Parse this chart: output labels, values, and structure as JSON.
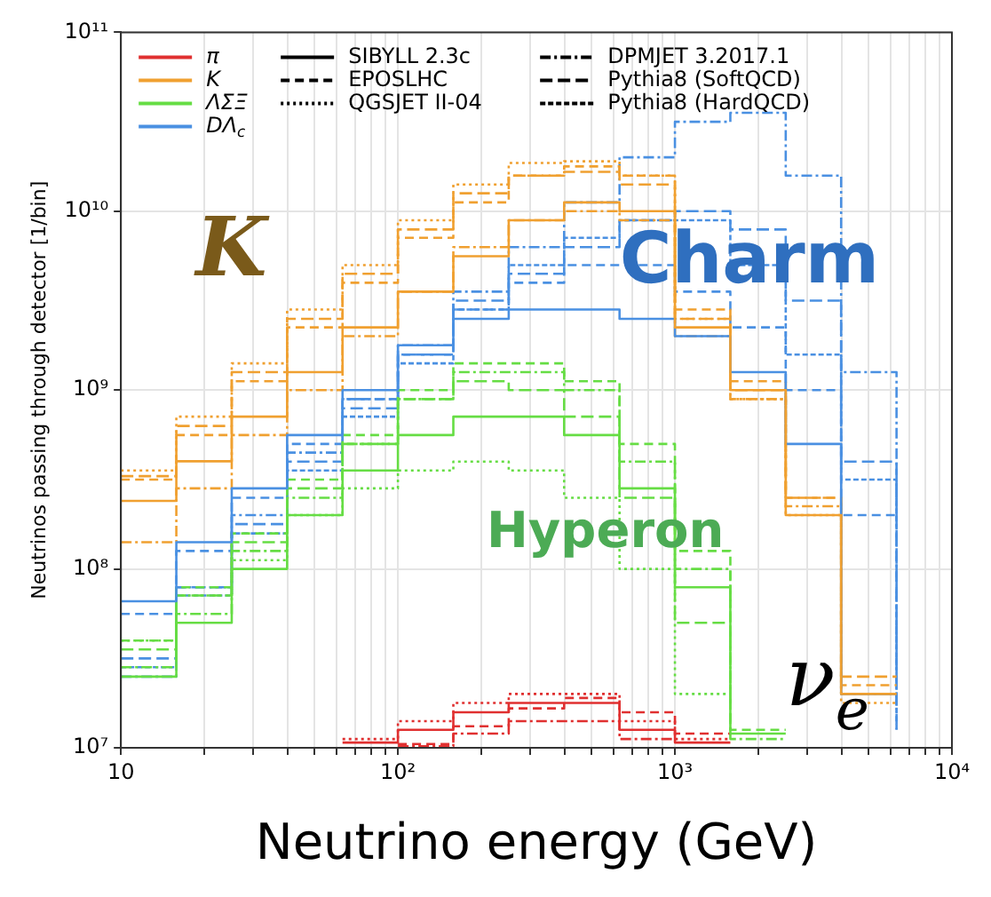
{
  "chart_data": {
    "type": "step",
    "xlabel": "Neutrino energy (GeV)",
    "ylabel": "Neutrinos passing through detector [1/bin]",
    "log": "xy",
    "grid": true,
    "legend": "top left",
    "xlim": [
      10,
      10000
    ],
    "ylim": [
      10000000,
      100000000000
    ],
    "xticks": [
      {
        "value": 10,
        "label": "10"
      },
      {
        "value": 20,
        "label": null
      },
      {
        "value": 30,
        "label": null
      },
      {
        "value": 40,
        "label": null
      },
      {
        "value": 50,
        "label": null
      },
      {
        "value": 60,
        "label": null
      },
      {
        "value": 70,
        "label": null
      },
      {
        "value": 80,
        "label": null
      },
      {
        "value": 90,
        "label": null
      },
      {
        "value": 100,
        "label": "10²"
      },
      {
        "value": 200,
        "label": null
      },
      {
        "value": 300,
        "label": null
      },
      {
        "value": 400,
        "label": null
      },
      {
        "value": 500,
        "label": null
      },
      {
        "value": 600,
        "label": null
      },
      {
        "value": 700,
        "label": null
      },
      {
        "value": 800,
        "label": null
      },
      {
        "value": 900,
        "label": null
      },
      {
        "value": 1000,
        "label": "10³"
      },
      {
        "value": 2000,
        "label": null
      },
      {
        "value": 3000,
        "label": null
      },
      {
        "value": 4000,
        "label": null
      },
      {
        "value": 5000,
        "label": null
      },
      {
        "value": 6000,
        "label": null
      },
      {
        "value": 7000,
        "label": null
      },
      {
        "value": 8000,
        "label": null
      },
      {
        "value": 9000,
        "label": null
      },
      {
        "value": 10000,
        "label": "10⁴"
      }
    ],
    "yticks": [
      {
        "value": 10000000,
        "label": "10⁷"
      },
      {
        "value": 100000000,
        "label": "10⁸"
      },
      {
        "value": 1000000000,
        "label": "10⁹"
      },
      {
        "value": 10000000000,
        "label": "10¹⁰"
      },
      {
        "value": 100000000000,
        "label": "10¹¹"
      }
    ],
    "x": [
      10,
      15.85,
      25.12,
      39.81,
      63.1,
      100,
      158.5,
      251.2,
      398.1,
      631,
      1000,
      1585,
      2512,
      3981,
      6310
    ],
    "annotations": [
      "K",
      "Charm",
      "Hyperon",
      "ν$_{e}$"
    ],
    "series": [
      {
        "name": "π",
        "color": "#e03030",
        "line_style": "solid",
        "values": [
          null,
          null,
          null,
          null,
          10700000.0,
          12600000.0,
          15800000.0,
          17800000.0,
          17800000.0,
          12600000.0,
          10700000.0,
          10700000.0,
          null,
          null,
          null
        ]
      },
      {
        "name": "K",
        "color": "#f0a030",
        "line_style": "solid",
        "values": [
          240000000.0,
          400000000.0,
          710000000.0,
          1260000000.0,
          2240000000.0,
          3550000000.0,
          5600000000.0,
          8900000000.0,
          11200000000.0,
          10000000000.0,
          2240000000.0,
          1000000000.0,
          200000000.0,
          20000000.0,
          20000000.0
        ]
      },
      {
        "name": "ΛΣΞ",
        "color": "#66dd44",
        "line_style": "solid",
        "values": [
          25000000.0,
          50000000.0,
          100000000.0,
          200000000.0,
          355000000.0,
          560000000.0,
          710000000.0,
          710000000.0,
          560000000.0,
          282000000.0,
          79000000.0,
          12000000.0,
          12000000.0,
          null,
          null
        ]
      },
      {
        "name": "DΛ$_{c}$",
        "color": "#4a90e2",
        "line_style": "solid",
        "values": [
          66000000.0,
          141000000.0,
          282000000.0,
          560000000.0,
          1000000000.0,
          1780000000.0,
          2500000000.0,
          2820000000.0,
          2820000000.0,
          2500000000.0,
          2000000000.0,
          1260000000.0,
          500000000.0,
          20000000.0,
          20000000.0
        ]
      },
      {
        "name": "SIBYLL 2.3c",
        "color": "#000000",
        "line_style": "solid",
        "values": [
          null,
          null,
          null,
          null,
          null,
          null,
          null,
          null,
          null,
          null,
          null,
          null,
          null,
          null,
          null
        ]
      },
      {
        "name": "EPOSLHC",
        "color": "#000000",
        "line_style": "dashed",
        "values": [
          null,
          null,
          null,
          null,
          null,
          null,
          null,
          null,
          null,
          null,
          null,
          null,
          null,
          null,
          null
        ]
      },
      {
        "name": "QGSJET II-04",
        "color": "#000000",
        "line_style": "dotted",
        "values": [
          null,
          null,
          null,
          null,
          null,
          null,
          null,
          null,
          null,
          null,
          null,
          null,
          null,
          null,
          null
        ]
      },
      {
        "name": "DPMJET 3.2017.1",
        "color": "#000000",
        "line_style": "dashdot",
        "values": [
          null,
          null,
          null,
          null,
          null,
          null,
          null,
          null,
          null,
          null,
          null,
          null,
          null,
          null,
          null
        ]
      },
      {
        "name": "Pythia8 (SoftQCD)",
        "color": "#000000",
        "line_style": "longdash",
        "values": [
          null,
          null,
          null,
          null,
          null,
          null,
          null,
          null,
          null,
          null,
          null,
          null,
          null,
          null,
          null
        ]
      },
      {
        "name": "Pythia8 (HardQCD)",
        "color": "#000000",
        "line_style": "densedash",
        "values": [
          null,
          null,
          null,
          null,
          null,
          null,
          null,
          null,
          null,
          null,
          null,
          null,
          null,
          null,
          null
        ]
      },
      {
        "color": "#e03030",
        "line_style": "dashed",
        "values": [
          null,
          null,
          null,
          null,
          null,
          10500000.0,
          13200000.0,
          16600000.0,
          19000000.0,
          15800000.0,
          12000000.0,
          12000000.0,
          null,
          null,
          null
        ]
      },
      {
        "color": "#e03030",
        "line_style": "dotted",
        "values": [
          null,
          null,
          null,
          null,
          11200000.0,
          14100000.0,
          17800000.0,
          20000000.0,
          20000000.0,
          14100000.0,
          11200000.0,
          11200000.0,
          null,
          null,
          null
        ]
      },
      {
        "color": "#e03030",
        "line_style": "dashdot",
        "values": [
          null,
          null,
          null,
          null,
          null,
          10200000.0,
          12000000.0,
          14100000.0,
          14100000.0,
          11200000.0,
          11200000.0,
          null,
          null,
          null,
          null
        ]
      },
      {
        "color": "#f0a030",
        "line_style": "dashed",
        "values": [
          316000000.0,
          560000000.0,
          1120000000.0,
          2240000000.0,
          3980000000.0,
          7100000000.0,
          11200000000.0,
          15800000000.0,
          17800000000.0,
          15800000000.0,
          2820000000.0,
          1120000000.0,
          250000000.0,
          22400000.0,
          22400000.0
        ]
      },
      {
        "color": "#f0a030",
        "line_style": "dotted",
        "values": [
          355000000.0,
          710000000.0,
          1410000000.0,
          2820000000.0,
          5000000000.0,
          8900000000.0,
          14100000000.0,
          18600000000.0,
          19000000000.0,
          15800000000.0,
          2500000000.0,
          890000000.0,
          200000000.0,
          17800000.0,
          17800000.0
        ]
      },
      {
        "color": "#f0a030",
        "line_style": "dashdot",
        "values": [
          141000000.0,
          282000000.0,
          560000000.0,
          1000000000.0,
          2000000000.0,
          3550000000.0,
          6300000000.0,
          8900000000.0,
          10000000000.0,
          8900000000.0,
          2000000000.0,
          890000000.0,
          224000000.0,
          20000000.0,
          20000000.0
        ]
      },
      {
        "color": "#f0a030",
        "line_style": "longdash",
        "values": [
          330000000.0,
          630000000.0,
          1260000000.0,
          2500000000.0,
          4470000000.0,
          7900000000.0,
          12600000000.0,
          15800000000.0,
          16600000000.0,
          14100000000.0,
          2500000000.0,
          1000000000.0,
          250000000.0,
          25000000.0,
          25000000.0
        ]
      },
      {
        "color": "#66dd44",
        "line_style": "dashed",
        "values": [
          39800000.0,
          79000000.0,
          158000000.0,
          316000000.0,
          560000000.0,
          1000000000.0,
          1410000000.0,
          1410000000.0,
          1120000000.0,
          500000000.0,
          126000000.0,
          12600000.0,
          12600000.0,
          null,
          null
        ]
      },
      {
        "color": "#66dd44",
        "line_style": "dotted",
        "values": [
          39800000.0,
          71000000.0,
          112000000.0,
          200000000.0,
          282000000.0,
          355000000.0,
          398000000.0,
          355000000.0,
          250000000.0,
          100000000.0,
          20000000.0,
          20000000.0,
          null,
          null,
          null
        ]
      },
      {
        "color": "#66dd44",
        "line_style": "dashdot",
        "values": [
          28200000.0,
          56000000.0,
          126000000.0,
          250000000.0,
          500000000.0,
          890000000.0,
          1260000000.0,
          1260000000.0,
          1000000000.0,
          398000000.0,
          100000000.0,
          11200000.0,
          11200000.0,
          null,
          null
        ]
      },
      {
        "color": "#66dd44",
        "line_style": "longdash",
        "values": [
          35500000.0,
          71000000.0,
          141000000.0,
          282000000.0,
          500000000.0,
          890000000.0,
          1120000000.0,
          1000000000.0,
          710000000.0,
          250000000.0,
          50000000.0,
          50000000.0,
          null,
          null,
          null
        ]
      },
      {
        "color": "#4a90e2",
        "line_style": "dashed",
        "values": [
          56000000.0,
          126000000.0,
          250000000.0,
          500000000.0,
          890000000.0,
          1580000000.0,
          2820000000.0,
          3980000000.0,
          5000000000.0,
          5000000000.0,
          3550000000.0,
          2240000000.0,
          1000000000.0,
          200000000.0,
          200000000.0
        ]
      },
      {
        "color": "#4a90e2",
        "line_style": "dashdot",
        "values": [
          25000000.0,
          79000000.0,
          200000000.0,
          447000000.0,
          890000000.0,
          1780000000.0,
          3550000000.0,
          6300000000.0,
          11200000000.0,
          20000000000.0,
          31600000000.0,
          35500000000.0,
          15800000000.0,
          1260000000.0,
          12600000.0
        ]
      },
      {
        "color": "#4a90e2",
        "line_style": "longdash",
        "values": [
          31600000.0,
          79000000.0,
          178000000.0,
          398000000.0,
          790000000.0,
          1580000000.0,
          3160000000.0,
          4470000000.0,
          6300000000.0,
          8900000000.0,
          10000000000.0,
          7900000000.0,
          3160000000.0,
          398000000.0,
          15800000.0
        ]
      },
      {
        "color": "#4a90e2",
        "line_style": "densedash",
        "values": [
          28200000.0,
          71000000.0,
          158000000.0,
          355000000.0,
          710000000.0,
          1410000000.0,
          2820000000.0,
          5000000000.0,
          7100000000.0,
          8900000000.0,
          8900000000.0,
          5000000000.0,
          1580000000.0,
          316000000.0,
          12600000.0
        ]
      }
    ]
  }
}
